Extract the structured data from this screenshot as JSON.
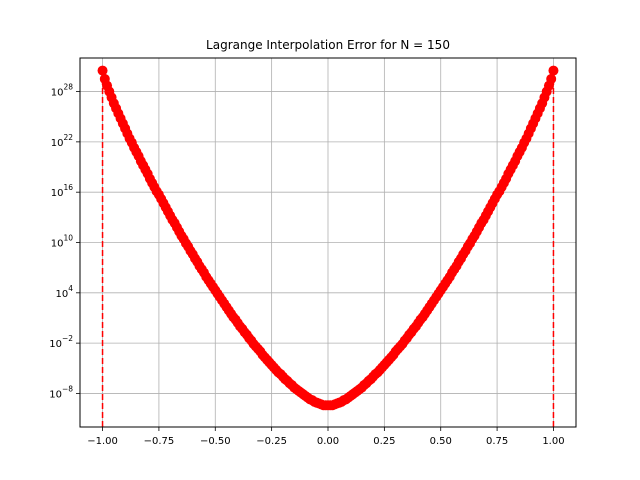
{
  "chart_data": {
    "type": "scatter",
    "title": "Lagrange Interpolation Error for N = 150",
    "xlabel": "",
    "ylabel": "",
    "xlim": [
      -1.1,
      1.1
    ],
    "ylim_log10": [
      -12,
      32
    ],
    "yscale": "log",
    "grid": true,
    "x_ticks": [
      -1.0,
      -0.75,
      -0.5,
      -0.25,
      0.0,
      0.25,
      0.5,
      0.75,
      1.0
    ],
    "x_tick_labels": [
      "−1.00",
      "−0.75",
      "−0.50",
      "−0.25",
      "0.00",
      "0.25",
      "0.50",
      "0.75",
      "1.00"
    ],
    "y_tick_exponents": [
      -8,
      -2,
      4,
      10,
      16,
      22,
      28
    ],
    "y_tick_base": "10",
    "y_tick_exp_labels": [
      "−8",
      "−2",
      "4",
      "10",
      "16",
      "22",
      "28"
    ],
    "vertical_lines": [
      {
        "x": -1.0,
        "style": "dashed"
      },
      {
        "x": 1.0,
        "style": "dashed"
      }
    ],
    "series": [
      {
        "color": "#ff0000",
        "marker": "circle",
        "points_log10": [
          [
            -1.0,
            30.5
          ],
          [
            -0.99,
            29.5
          ],
          [
            -0.98,
            28.7
          ],
          [
            -0.97,
            28.0
          ],
          [
            -0.96,
            27.3
          ],
          [
            -0.95,
            26.6
          ],
          [
            -0.94,
            26.0
          ],
          [
            -0.93,
            25.4
          ],
          [
            -0.92,
            24.8
          ],
          [
            -0.91,
            24.2
          ],
          [
            -0.9,
            23.6
          ],
          [
            -0.89,
            23.0
          ],
          [
            -0.88,
            22.4
          ],
          [
            -0.87,
            21.9
          ],
          [
            -0.86,
            21.3
          ],
          [
            -0.85,
            20.8
          ],
          [
            -0.84,
            20.3
          ],
          [
            -0.83,
            19.7
          ],
          [
            -0.82,
            19.2
          ],
          [
            -0.81,
            18.7
          ],
          [
            -0.8,
            18.2
          ],
          [
            -0.79,
            17.6
          ],
          [
            -0.78,
            17.1
          ],
          [
            -0.77,
            16.6
          ],
          [
            -0.76,
            16.1
          ],
          [
            -0.75,
            15.7
          ],
          [
            -0.74,
            15.2
          ],
          [
            -0.73,
            14.7
          ],
          [
            -0.72,
            14.2
          ],
          [
            -0.71,
            13.7
          ],
          [
            -0.7,
            13.2
          ],
          [
            -0.69,
            12.7
          ],
          [
            -0.68,
            12.3
          ],
          [
            -0.67,
            11.8
          ],
          [
            -0.66,
            11.3
          ],
          [
            -0.65,
            10.8
          ],
          [
            -0.64,
            10.4
          ],
          [
            -0.63,
            9.9
          ],
          [
            -0.62,
            9.5
          ],
          [
            -0.61,
            9.0
          ],
          [
            -0.6,
            8.6
          ],
          [
            -0.59,
            8.1
          ],
          [
            -0.58,
            7.7
          ],
          [
            -0.57,
            7.2
          ],
          [
            -0.56,
            6.8
          ],
          [
            -0.55,
            6.4
          ],
          [
            -0.54,
            5.9
          ],
          [
            -0.53,
            5.5
          ],
          [
            -0.52,
            5.1
          ],
          [
            -0.51,
            4.7
          ],
          [
            -0.5,
            4.3
          ],
          [
            -0.49,
            3.9
          ],
          [
            -0.48,
            3.5
          ],
          [
            -0.47,
            3.1
          ],
          [
            -0.46,
            2.7
          ],
          [
            -0.45,
            2.3
          ],
          [
            -0.44,
            1.9
          ],
          [
            -0.43,
            1.5
          ],
          [
            -0.42,
            1.1
          ],
          [
            -0.41,
            0.8
          ],
          [
            -0.4,
            0.4
          ],
          [
            -0.39,
            0.0
          ],
          [
            -0.38,
            -0.3
          ],
          [
            -0.37,
            -0.7
          ],
          [
            -0.36,
            -1.0
          ],
          [
            -0.35,
            -1.4
          ],
          [
            -0.34,
            -1.7
          ],
          [
            -0.33,
            -2.1
          ],
          [
            -0.32,
            -2.4
          ],
          [
            -0.31,
            -2.7
          ],
          [
            -0.3,
            -3.0
          ],
          [
            -0.29,
            -3.4
          ],
          [
            -0.28,
            -3.7
          ],
          [
            -0.27,
            -4.0
          ],
          [
            -0.26,
            -4.3
          ],
          [
            -0.25,
            -4.6
          ],
          [
            -0.24,
            -4.9
          ],
          [
            -0.23,
            -5.2
          ],
          [
            -0.22,
            -5.5
          ],
          [
            -0.21,
            -5.7
          ],
          [
            -0.2,
            -6.0
          ],
          [
            -0.19,
            -6.3
          ],
          [
            -0.18,
            -6.5
          ],
          [
            -0.17,
            -6.8
          ],
          [
            -0.16,
            -7.0
          ],
          [
            -0.15,
            -7.3
          ],
          [
            -0.14,
            -7.5
          ],
          [
            -0.13,
            -7.7
          ],
          [
            -0.12,
            -7.9
          ],
          [
            -0.11,
            -8.1
          ],
          [
            -0.1,
            -8.3
          ],
          [
            -0.09,
            -8.5
          ],
          [
            -0.08,
            -8.7
          ],
          [
            -0.07,
            -8.8
          ],
          [
            -0.06,
            -9.0
          ],
          [
            -0.05,
            -9.1
          ],
          [
            -0.04,
            -9.2
          ],
          [
            -0.03,
            -9.3
          ],
          [
            -0.02,
            -9.4
          ],
          [
            -0.01,
            -9.4
          ],
          [
            0.0,
            -9.4
          ],
          [
            0.01,
            -9.4
          ],
          [
            0.02,
            -9.4
          ],
          [
            0.03,
            -9.3
          ],
          [
            0.04,
            -9.2
          ],
          [
            0.05,
            -9.1
          ],
          [
            0.06,
            -9.0
          ],
          [
            0.07,
            -8.8
          ],
          [
            0.08,
            -8.7
          ],
          [
            0.09,
            -8.5
          ],
          [
            0.1,
            -8.3
          ],
          [
            0.11,
            -8.1
          ],
          [
            0.12,
            -7.9
          ],
          [
            0.13,
            -7.7
          ],
          [
            0.14,
            -7.5
          ],
          [
            0.15,
            -7.3
          ],
          [
            0.16,
            -7.0
          ],
          [
            0.17,
            -6.8
          ],
          [
            0.18,
            -6.5
          ],
          [
            0.19,
            -6.3
          ],
          [
            0.2,
            -6.0
          ],
          [
            0.21,
            -5.7
          ],
          [
            0.22,
            -5.5
          ],
          [
            0.23,
            -5.2
          ],
          [
            0.24,
            -4.9
          ],
          [
            0.25,
            -4.6
          ],
          [
            0.26,
            -4.3
          ],
          [
            0.27,
            -4.0
          ],
          [
            0.28,
            -3.7
          ],
          [
            0.29,
            -3.4
          ],
          [
            0.3,
            -3.0
          ],
          [
            0.31,
            -2.7
          ],
          [
            0.32,
            -2.4
          ],
          [
            0.33,
            -2.1
          ],
          [
            0.34,
            -1.7
          ],
          [
            0.35,
            -1.4
          ],
          [
            0.36,
            -1.0
          ],
          [
            0.37,
            -0.7
          ],
          [
            0.38,
            -0.3
          ],
          [
            0.39,
            0.0
          ],
          [
            0.4,
            0.4
          ],
          [
            0.41,
            0.8
          ],
          [
            0.42,
            1.1
          ],
          [
            0.43,
            1.5
          ],
          [
            0.44,
            1.9
          ],
          [
            0.45,
            2.3
          ],
          [
            0.46,
            2.7
          ],
          [
            0.47,
            3.1
          ],
          [
            0.48,
            3.5
          ],
          [
            0.49,
            3.9
          ],
          [
            0.5,
            4.3
          ],
          [
            0.51,
            4.7
          ],
          [
            0.52,
            5.1
          ],
          [
            0.53,
            5.5
          ],
          [
            0.54,
            5.9
          ],
          [
            0.55,
            6.4
          ],
          [
            0.56,
            6.8
          ],
          [
            0.57,
            7.2
          ],
          [
            0.58,
            7.7
          ],
          [
            0.59,
            8.1
          ],
          [
            0.6,
            8.6
          ],
          [
            0.61,
            9.0
          ],
          [
            0.62,
            9.5
          ],
          [
            0.63,
            9.9
          ],
          [
            0.64,
            10.4
          ],
          [
            0.65,
            10.8
          ],
          [
            0.66,
            11.3
          ],
          [
            0.67,
            11.8
          ],
          [
            0.68,
            12.3
          ],
          [
            0.69,
            12.7
          ],
          [
            0.7,
            13.2
          ],
          [
            0.71,
            13.7
          ],
          [
            0.72,
            14.2
          ],
          [
            0.73,
            14.7
          ],
          [
            0.74,
            15.2
          ],
          [
            0.75,
            15.7
          ],
          [
            0.76,
            16.1
          ],
          [
            0.77,
            16.6
          ],
          [
            0.78,
            17.1
          ],
          [
            0.79,
            17.6
          ],
          [
            0.8,
            18.2
          ],
          [
            0.81,
            18.7
          ],
          [
            0.82,
            19.2
          ],
          [
            0.83,
            19.7
          ],
          [
            0.84,
            20.3
          ],
          [
            0.85,
            20.8
          ],
          [
            0.86,
            21.3
          ],
          [
            0.87,
            21.9
          ],
          [
            0.88,
            22.4
          ],
          [
            0.89,
            23.0
          ],
          [
            0.9,
            23.6
          ],
          [
            0.91,
            24.2
          ],
          [
            0.92,
            24.8
          ],
          [
            0.93,
            25.4
          ],
          [
            0.94,
            26.0
          ],
          [
            0.95,
            26.6
          ],
          [
            0.96,
            27.3
          ],
          [
            0.97,
            28.0
          ],
          [
            0.98,
            28.7
          ],
          [
            0.99,
            29.5
          ],
          [
            1.0,
            30.5
          ]
        ]
      }
    ]
  }
}
